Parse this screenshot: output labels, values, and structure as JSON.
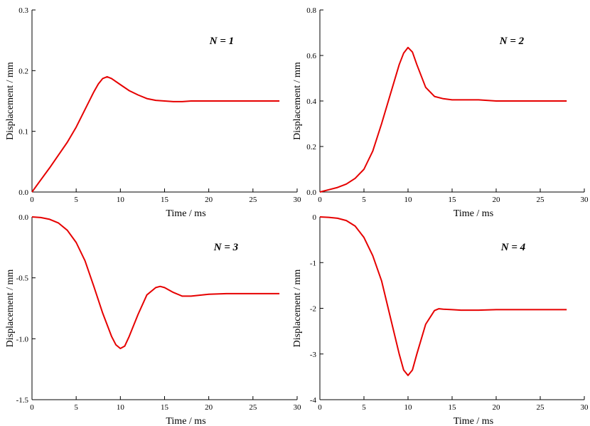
{
  "chart_data": [
    {
      "type": "line",
      "annotation": "N = 1",
      "xlabel": "Time / ms",
      "ylabel": "Displacement / mm",
      "xlim": [
        0,
        30
      ],
      "ylim": [
        0,
        0.3
      ],
      "xticks": [
        "0",
        "5",
        "10",
        "15",
        "20",
        "25",
        "30"
      ],
      "yticks": [
        "0.0",
        "0.1",
        "0.2",
        "0.3"
      ],
      "line_color": "#e60000",
      "x": [
        0,
        1,
        2,
        3,
        4,
        5,
        6,
        7,
        7.5,
        8,
        8.5,
        9,
        10,
        11,
        12,
        13,
        14,
        15,
        16,
        17,
        18,
        20,
        22,
        25,
        28
      ],
      "y": [
        0,
        0.02,
        0.04,
        0.061,
        0.082,
        0.107,
        0.136,
        0.165,
        0.178,
        0.187,
        0.19,
        0.187,
        0.177,
        0.167,
        0.16,
        0.154,
        0.151,
        0.15,
        0.149,
        0.149,
        0.15,
        0.15,
        0.15,
        0.15,
        0.15
      ]
    },
    {
      "type": "line",
      "annotation": "N = 2",
      "xlabel": "Time / ms",
      "ylabel": "Displacement / mm",
      "xlim": [
        0,
        30
      ],
      "ylim": [
        0,
        0.8
      ],
      "xticks": [
        "0",
        "5",
        "10",
        "15",
        "20",
        "25",
        "30"
      ],
      "yticks": [
        "0.0",
        "0.2",
        "0.4",
        "0.6",
        "0.8"
      ],
      "line_color": "#e60000",
      "x": [
        0,
        1,
        2,
        3,
        4,
        5,
        6,
        7,
        8,
        9,
        9.5,
        10,
        10.5,
        11,
        12,
        13,
        14,
        15,
        16,
        18,
        20,
        22,
        25,
        28
      ],
      "y": [
        0,
        0.01,
        0.02,
        0.035,
        0.06,
        0.1,
        0.18,
        0.3,
        0.43,
        0.56,
        0.61,
        0.635,
        0.615,
        0.56,
        0.46,
        0.42,
        0.41,
        0.405,
        0.405,
        0.405,
        0.4,
        0.4,
        0.4,
        0.4
      ]
    },
    {
      "type": "line",
      "annotation": "N = 3",
      "xlabel": "Time / ms",
      "ylabel": "Displacement / mm",
      "xlim": [
        0,
        30
      ],
      "ylim": [
        -1.5,
        0
      ],
      "xticks": [
        "0",
        "5",
        "10",
        "15",
        "20",
        "25",
        "30"
      ],
      "yticks": [
        "0.0",
        "-0.5",
        "-1.0",
        "-1.5"
      ],
      "line_color": "#e60000",
      "x": [
        0,
        1,
        2,
        3,
        4,
        5,
        6,
        7,
        8,
        9,
        9.5,
        10,
        10.5,
        11,
        12,
        13,
        14,
        14.5,
        15,
        16,
        17,
        18,
        20,
        22,
        25,
        28
      ],
      "y": [
        0,
        -0.005,
        -0.02,
        -0.05,
        -0.11,
        -0.21,
        -0.36,
        -0.57,
        -0.79,
        -0.98,
        -1.05,
        -1.08,
        -1.06,
        -0.98,
        -0.8,
        -0.64,
        -0.58,
        -0.57,
        -0.58,
        -0.62,
        -0.65,
        -0.65,
        -0.635,
        -0.63,
        -0.63,
        -0.63
      ]
    },
    {
      "type": "line",
      "annotation": "N = 4",
      "xlabel": "Time / ms",
      "ylabel": "Displacement / mm",
      "xlim": [
        0,
        30
      ],
      "ylim": [
        -4,
        0
      ],
      "xticks": [
        "0",
        "5",
        "10",
        "15",
        "20",
        "25",
        "30"
      ],
      "yticks": [
        "0",
        "-1",
        "-2",
        "-3",
        "-4"
      ],
      "line_color": "#e60000",
      "x": [
        0,
        1,
        2,
        3,
        4,
        5,
        6,
        7,
        8,
        9,
        9.5,
        10,
        10.5,
        11,
        12,
        13,
        13.5,
        14,
        15,
        16,
        18,
        20,
        22,
        25,
        28
      ],
      "y": [
        0,
        -0.01,
        -0.03,
        -0.08,
        -0.2,
        -0.45,
        -0.85,
        -1.4,
        -2.2,
        -3.0,
        -3.35,
        -3.47,
        -3.35,
        -3.0,
        -2.35,
        -2.05,
        -2.01,
        -2.02,
        -2.03,
        -2.04,
        -2.04,
        -2.03,
        -2.03,
        -2.03,
        -2.03
      ]
    }
  ]
}
